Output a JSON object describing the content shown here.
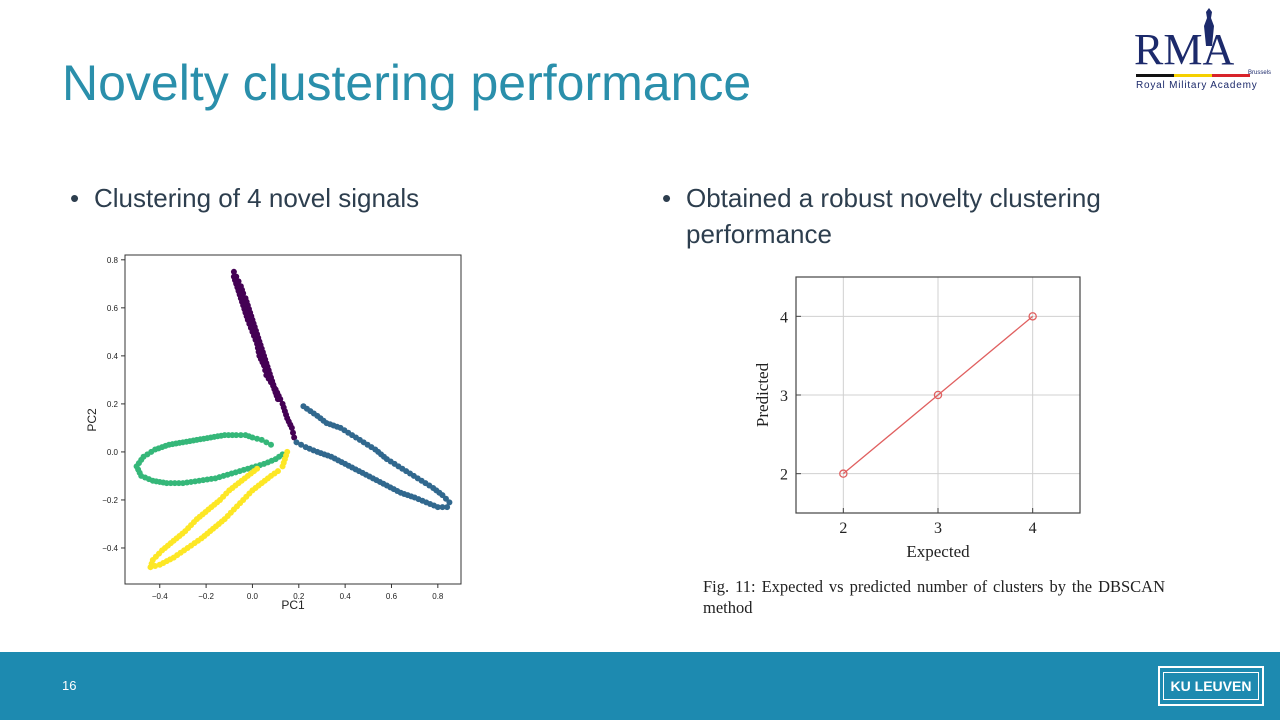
{
  "slide": {
    "title": "Novelty clustering performance",
    "bullet_left": "Clustering of 4 novel signals",
    "bullet_right": "Obtained a robust novelty clustering performance",
    "bullet_glyph": "•",
    "page_number": "16",
    "footer_logo": "KU LEUVEN",
    "footer_color": "#1d8ab0",
    "title_color": "#2a8fab"
  },
  "rma_logo": {
    "letters": "RMA",
    "city": "Brussels",
    "subtitle": "Royal Military Academy",
    "stripe_colors": [
      "#111111",
      "#f5d000",
      "#d8232a"
    ]
  },
  "caption": "Fig. 11: Expected vs predicted number of clusters by the DBSCAN method",
  "chart_data": [
    {
      "type": "scatter",
      "xlabel": "PC1",
      "ylabel": "PC2",
      "xlim": [
        -0.55,
        0.9
      ],
      "ylim": [
        -0.55,
        0.82
      ],
      "xticks": [
        "−0.4",
        "−0.2",
        "0.0",
        "0.2",
        "0.4",
        "0.6",
        "0.8"
      ],
      "xtick_values": [
        -0.4,
        -0.2,
        0.0,
        0.2,
        0.4,
        0.6,
        0.8
      ],
      "yticks": [
        "−0.4",
        "−0.2",
        "0.0",
        "0.2",
        "0.4",
        "0.6",
        "0.8"
      ],
      "ytick_values": [
        -0.4,
        -0.2,
        0.0,
        0.2,
        0.4,
        0.6,
        0.8
      ],
      "series": [
        {
          "color": "#440154",
          "points": [
            [
              -0.08,
              0.75
            ],
            [
              -0.07,
              0.73
            ],
            [
              -0.06,
              0.71
            ],
            [
              -0.05,
              0.69
            ],
            [
              -0.04,
              0.66
            ],
            [
              -0.03,
              0.64
            ],
            [
              -0.02,
              0.61
            ],
            [
              -0.01,
              0.58
            ],
            [
              0.0,
              0.55
            ],
            [
              0.01,
              0.52
            ],
            [
              0.02,
              0.49
            ],
            [
              0.03,
              0.46
            ],
            [
              0.04,
              0.43
            ],
            [
              0.05,
              0.4
            ],
            [
              0.06,
              0.37
            ],
            [
              0.07,
              0.34
            ],
            [
              0.08,
              0.31
            ],
            [
              0.09,
              0.28
            ],
            [
              0.1,
              0.25
            ],
            [
              0.11,
              0.22
            ],
            [
              -0.08,
              0.73
            ],
            [
              -0.07,
              0.7
            ],
            [
              -0.06,
              0.67
            ],
            [
              -0.05,
              0.64
            ],
            [
              -0.04,
              0.61
            ],
            [
              -0.03,
              0.58
            ],
            [
              -0.02,
              0.55
            ],
            [
              0.0,
              0.5
            ],
            [
              0.02,
              0.45
            ],
            [
              0.03,
              0.4
            ],
            [
              0.05,
              0.36
            ],
            [
              0.06,
              0.32
            ],
            [
              0.08,
              0.29
            ],
            [
              0.1,
              0.26
            ],
            [
              0.12,
              0.22
            ],
            [
              0.13,
              0.2
            ],
            [
              0.14,
              0.17
            ],
            [
              0.15,
              0.14
            ],
            [
              0.17,
              0.1
            ],
            [
              0.18,
              0.06
            ]
          ]
        },
        {
          "color": "#31688e",
          "points": [
            [
              0.22,
              0.19
            ],
            [
              0.25,
              0.17
            ],
            [
              0.28,
              0.15
            ],
            [
              0.32,
              0.12
            ],
            [
              0.38,
              0.1
            ],
            [
              0.43,
              0.07
            ],
            [
              0.48,
              0.04
            ],
            [
              0.53,
              0.01
            ],
            [
              0.58,
              -0.03
            ],
            [
              0.63,
              -0.06
            ],
            [
              0.68,
              -0.09
            ],
            [
              0.73,
              -0.12
            ],
            [
              0.78,
              -0.15
            ],
            [
              0.82,
              -0.18
            ],
            [
              0.85,
              -0.21
            ],
            [
              0.84,
              -0.23
            ],
            [
              0.8,
              -0.23
            ],
            [
              0.75,
              -0.21
            ],
            [
              0.7,
              -0.19
            ],
            [
              0.64,
              -0.17
            ],
            [
              0.58,
              -0.14
            ],
            [
              0.52,
              -0.11
            ],
            [
              0.46,
              -0.08
            ],
            [
              0.4,
              -0.05
            ],
            [
              0.34,
              -0.02
            ],
            [
              0.28,
              0.0
            ],
            [
              0.23,
              0.02
            ],
            [
              0.19,
              0.04
            ]
          ]
        },
        {
          "color": "#35b779",
          "points": [
            [
              0.08,
              0.03
            ],
            [
              0.04,
              0.05
            ],
            [
              0.0,
              0.06
            ],
            [
              -0.03,
              0.07
            ],
            [
              -0.07,
              0.07
            ],
            [
              -0.12,
              0.07
            ],
            [
              -0.18,
              0.06
            ],
            [
              -0.24,
              0.05
            ],
            [
              -0.3,
              0.04
            ],
            [
              -0.36,
              0.03
            ],
            [
              -0.42,
              0.01
            ],
            [
              -0.47,
              -0.02
            ],
            [
              -0.5,
              -0.06
            ],
            [
              -0.48,
              -0.1
            ],
            [
              -0.43,
              -0.12
            ],
            [
              -0.37,
              -0.13
            ],
            [
              -0.3,
              -0.13
            ],
            [
              -0.23,
              -0.12
            ],
            [
              -0.16,
              -0.11
            ],
            [
              -0.09,
              -0.09
            ],
            [
              -0.02,
              -0.07
            ],
            [
              0.05,
              -0.05
            ],
            [
              0.1,
              -0.03
            ],
            [
              0.13,
              -0.01
            ]
          ]
        },
        {
          "color": "#fde725",
          "points": [
            [
              0.15,
              0.0
            ],
            [
              0.14,
              -0.03
            ],
            [
              0.13,
              -0.06
            ],
            [
              0.11,
              -0.08
            ],
            [
              0.08,
              -0.1
            ],
            [
              0.04,
              -0.13
            ],
            [
              0.0,
              -0.16
            ],
            [
              -0.04,
              -0.2
            ],
            [
              -0.08,
              -0.24
            ],
            [
              -0.12,
              -0.28
            ],
            [
              -0.17,
              -0.32
            ],
            [
              -0.22,
              -0.36
            ],
            [
              -0.28,
              -0.4
            ],
            [
              -0.34,
              -0.44
            ],
            [
              -0.4,
              -0.47
            ],
            [
              -0.44,
              -0.48
            ],
            [
              -0.43,
              -0.45
            ],
            [
              -0.39,
              -0.41
            ],
            [
              -0.34,
              -0.37
            ],
            [
              -0.29,
              -0.33
            ],
            [
              -0.24,
              -0.28
            ],
            [
              -0.19,
              -0.24
            ],
            [
              -0.14,
              -0.2
            ],
            [
              -0.1,
              -0.16
            ],
            [
              -0.06,
              -0.13
            ],
            [
              -0.02,
              -0.1
            ],
            [
              0.02,
              -0.07
            ]
          ]
        }
      ]
    },
    {
      "type": "line",
      "xlabel": "Expected",
      "ylabel": "Predicted",
      "x": [
        2,
        3,
        4
      ],
      "y": [
        2,
        3,
        4
      ],
      "xlim": [
        1.5,
        4.5
      ],
      "ylim": [
        1.5,
        4.5
      ],
      "xticks": [
        2,
        3,
        4
      ],
      "yticks": [
        2,
        3,
        4
      ],
      "grid": true,
      "line_color": "#e06060"
    }
  ]
}
